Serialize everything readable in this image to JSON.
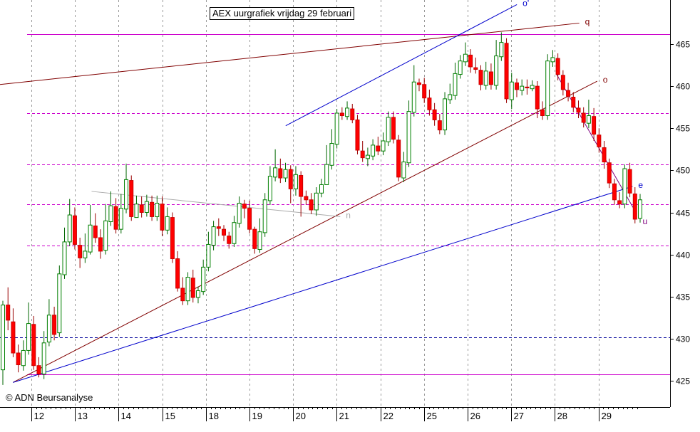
{
  "chart_data": {
    "type": "candlestick",
    "title": "AEX uurgrafiek vrijdag 29 februari",
    "credit": "© ADN Beursanalyse",
    "x_tick_labels": [
      "12",
      "13",
      "14",
      "15",
      "18",
      "19",
      "20",
      "21",
      "22",
      "25",
      "26",
      "27",
      "28",
      "29"
    ],
    "y_tick_labels": [
      425,
      430,
      435,
      440,
      445,
      450,
      455,
      460,
      465
    ],
    "ylim": [
      422,
      471
    ],
    "grid": true,
    "horizontal_levels": [
      {
        "value": 466.2,
        "style": "solid",
        "color": "#cc00cc"
      },
      {
        "value": 456.8,
        "style": "dashed",
        "color": "#cc00cc"
      },
      {
        "value": 450.7,
        "style": "dashed",
        "color": "#cc00cc"
      },
      {
        "value": 446.0,
        "style": "dashed",
        "color": "#cc00cc"
      },
      {
        "value": 441.1,
        "style": "dashed",
        "color": "#cc00cc"
      },
      {
        "value": 430.2,
        "style": "dashed",
        "color": "#000099"
      },
      {
        "value": 425.8,
        "style": "solid",
        "color": "#cc00cc"
      }
    ],
    "trendlines": [
      {
        "label": "q",
        "color": "#800000",
        "from": [
          0.0,
          460.2
        ],
        "to": [
          13.28,
          467.5
        ]
      },
      {
        "label": "o",
        "color": "#800000",
        "from": [
          0.3,
          424.8
        ],
        "to": [
          13.69,
          460.6
        ]
      },
      {
        "label": "o'",
        "color": "#0000cc",
        "from": [
          6.55,
          455.3
        ],
        "to": [
          11.85,
          469.7
        ]
      },
      {
        "label": "e",
        "color": "#0000cc",
        "from": [
          0.3,
          424.8
        ],
        "to": [
          14.5,
          448.1
        ]
      },
      {
        "label": "u",
        "color": "#800080",
        "from": [
          12.75,
          461.5
        ],
        "to": [
          14.6,
          444.8
        ]
      },
      {
        "label": "n",
        "color": "#aaaaaa",
        "from": [
          2.1,
          447.5
        ],
        "to": [
          7.8,
          444.5
        ]
      }
    ],
    "candles": [
      [
        426.3,
        434.0,
        434.5,
        424.5
      ],
      [
        434.0,
        432.2,
        436.1,
        431.0
      ],
      [
        432.0,
        428.3,
        433.6,
        427.8
      ],
      [
        428.3,
        426.9,
        429.3,
        426.0
      ],
      [
        426.8,
        428.6,
        429.8,
        426.2
      ],
      [
        428.6,
        431.8,
        434.3,
        428.1
      ],
      [
        431.7,
        426.8,
        432.7,
        426.3
      ],
      [
        426.8,
        425.8,
        427.8,
        425.4
      ],
      [
        425.8,
        429.5,
        430.9,
        425.2
      ],
      [
        429.6,
        432.8,
        434.7,
        429.1
      ],
      [
        432.8,
        430.5,
        433.8,
        429.8
      ],
      [
        430.7,
        437.7,
        438.7,
        430.2
      ],
      [
        437.6,
        441.5,
        443.2,
        437.1
      ],
      [
        441.5,
        444.7,
        446.6,
        441.0
      ],
      [
        444.6,
        441.2,
        445.6,
        440.6
      ],
      [
        441.1,
        439.6,
        442.0,
        438.4
      ],
      [
        439.6,
        440.4,
        442.5,
        439.0
      ],
      [
        440.3,
        443.5,
        445.9,
        440.0
      ],
      [
        443.4,
        442.0,
        444.9,
        441.4
      ],
      [
        442.0,
        440.4,
        443.0,
        439.5
      ],
      [
        440.5,
        444.0,
        446.0,
        440.0
      ],
      [
        443.9,
        445.8,
        447.5,
        443.4
      ],
      [
        445.7,
        443.0,
        446.7,
        442.5
      ],
      [
        443.0,
        445.5,
        447.2,
        442.5
      ],
      [
        445.4,
        448.9,
        450.8,
        444.9
      ],
      [
        448.8,
        444.5,
        449.4,
        444.0
      ],
      [
        444.4,
        446.0,
        447.0,
        445.4
      ],
      [
        445.9,
        445.0,
        446.9,
        444.4
      ],
      [
        445.0,
        446.3,
        447.1,
        444.5
      ],
      [
        446.2,
        444.5,
        447.0,
        444.0
      ],
      [
        444.5,
        446.1,
        447.0,
        444.0
      ],
      [
        446.0,
        442.9,
        446.9,
        442.2
      ],
      [
        442.9,
        444.5,
        445.6,
        442.4
      ],
      [
        444.4,
        439.5,
        445.0,
        439.0
      ],
      [
        439.5,
        436.0,
        440.4,
        435.6
      ],
      [
        436.0,
        434.5,
        437.3,
        434.0
      ],
      [
        434.5,
        437.3,
        437.9,
        434.0
      ],
      [
        437.2,
        434.9,
        438.2,
        434.3
      ],
      [
        434.9,
        435.7,
        436.2,
        434.2
      ],
      [
        435.6,
        438.5,
        439.4,
        435.2
      ],
      [
        438.5,
        441.2,
        442.7,
        438.0
      ],
      [
        441.1,
        443.3,
        444.0,
        440.5
      ],
      [
        443.3,
        443.1,
        444.3,
        442.2
      ],
      [
        443.0,
        442.3,
        443.5,
        441.6
      ],
      [
        442.2,
        441.3,
        442.7,
        440.7
      ],
      [
        441.3,
        443.8,
        444.6,
        440.9
      ],
      [
        443.7,
        446.1,
        446.9,
        443.2
      ],
      [
        446.0,
        445.5,
        446.5,
        444.3
      ],
      [
        445.5,
        443.0,
        446.4,
        442.5
      ],
      [
        443.0,
        440.7,
        443.3,
        440.1
      ],
      [
        440.6,
        442.7,
        444.3,
        440.2
      ],
      [
        442.6,
        446.5,
        447.3,
        442.1
      ],
      [
        446.4,
        449.3,
        450.5,
        445.9
      ],
      [
        449.2,
        450.3,
        452.5,
        448.7
      ],
      [
        450.2,
        449.1,
        451.4,
        448.5
      ],
      [
        449.1,
        450.1,
        450.9,
        448.6
      ],
      [
        450.1,
        447.8,
        450.6,
        446.1
      ],
      [
        447.8,
        449.5,
        450.5,
        447.0
      ],
      [
        449.4,
        446.9,
        449.9,
        444.5
      ],
      [
        446.9,
        446.5,
        447.6,
        445.9
      ],
      [
        446.5,
        445.3,
        447.3,
        444.8
      ],
      [
        445.3,
        447.3,
        448.0,
        444.6
      ],
      [
        447.3,
        448.3,
        449.0,
        446.8
      ],
      [
        448.3,
        450.7,
        453.0,
        449.2
      ],
      [
        450.6,
        453.2,
        454.9,
        450.1
      ],
      [
        453.1,
        456.8,
        457.3,
        452.6
      ],
      [
        456.8,
        456.5,
        457.5,
        456.0
      ],
      [
        456.4,
        457.4,
        458.2,
        456.0
      ],
      [
        457.3,
        456.0,
        457.9,
        455.6
      ],
      [
        456.0,
        452.4,
        456.6,
        451.9
      ],
      [
        452.3,
        451.5,
        453.5,
        451.0
      ],
      [
        451.4,
        451.8,
        452.7,
        450.5
      ],
      [
        451.7,
        453.0,
        453.7,
        451.2
      ],
      [
        452.9,
        452.3,
        454.0,
        451.8
      ],
      [
        452.3,
        453.5,
        454.5,
        451.8
      ],
      [
        453.4,
        456.3,
        457.0,
        452.9
      ],
      [
        456.3,
        453.7,
        457.0,
        453.2
      ],
      [
        453.6,
        449.2,
        454.2,
        448.7
      ],
      [
        449.1,
        451.0,
        452.2,
        448.6
      ],
      [
        450.9,
        457.0,
        458.3,
        450.4
      ],
      [
        456.9,
        460.5,
        462.5,
        456.4
      ],
      [
        460.4,
        460.2,
        460.9,
        459.4
      ],
      [
        460.2,
        458.6,
        461.0,
        458.0
      ],
      [
        458.6,
        457.2,
        459.6,
        456.5
      ],
      [
        457.2,
        456.0,
        458.0,
        455.3
      ],
      [
        455.9,
        454.8,
        456.7,
        454.3
      ],
      [
        454.8,
        458.5,
        459.3,
        454.2
      ],
      [
        458.4,
        459.0,
        460.3,
        457.9
      ],
      [
        458.9,
        461.5,
        462.8,
        458.4
      ],
      [
        461.4,
        463.0,
        463.7,
        460.9
      ],
      [
        462.9,
        463.8,
        465.2,
        462.4
      ],
      [
        463.7,
        462.3,
        464.4,
        461.6
      ],
      [
        462.2,
        462.0,
        463.4,
        461.5
      ],
      [
        461.9,
        460.2,
        462.5,
        459.5
      ],
      [
        460.1,
        461.8,
        462.9,
        459.6
      ],
      [
        461.7,
        460.2,
        462.7,
        459.6
      ],
      [
        460.1,
        463.6,
        465.5,
        459.6
      ],
      [
        463.5,
        465.2,
        466.4,
        463.0
      ],
      [
        465.1,
        458.5,
        465.7,
        458.0
      ],
      [
        458.4,
        460.5,
        461.6,
        457.3
      ],
      [
        460.4,
        459.6,
        460.9,
        458.7
      ],
      [
        459.5,
        460.0,
        460.8,
        458.9
      ],
      [
        459.9,
        459.8,
        460.8,
        459.0
      ],
      [
        459.7,
        460.1,
        460.7,
        459.4
      ],
      [
        460.0,
        457.3,
        460.6,
        456.2
      ],
      [
        457.2,
        456.5,
        458.2,
        456.0
      ],
      [
        456.5,
        463.0,
        463.8,
        456.0
      ],
      [
        462.9,
        463.4,
        464.3,
        462.3
      ],
      [
        463.3,
        461.4,
        463.9,
        460.7
      ],
      [
        461.3,
        459.6,
        461.9,
        458.9
      ],
      [
        459.5,
        458.8,
        460.4,
        458.2
      ],
      [
        458.7,
        457.5,
        459.3,
        456.9
      ],
      [
        457.4,
        456.9,
        458.3,
        456.2
      ],
      [
        456.8,
        455.7,
        457.5,
        455.1
      ],
      [
        455.6,
        456.5,
        458.4,
        455.0
      ],
      [
        456.4,
        454.3,
        457.4,
        453.5
      ],
      [
        454.2,
        452.8,
        455.0,
        452.1
      ],
      [
        452.7,
        451.0,
        453.5,
        450.2
      ],
      [
        450.9,
        448.5,
        451.4,
        447.9
      ],
      [
        448.4,
        446.5,
        449.0,
        445.9
      ],
      [
        446.4,
        446.0,
        447.4,
        445.5
      ],
      [
        446.0,
        450.2,
        450.7,
        445.5
      ],
      [
        450.1,
        447.3,
        450.9,
        446.8
      ],
      [
        447.2,
        444.2,
        448.0,
        443.7
      ],
      [
        444.3,
        446.5,
        447.2,
        443.8
      ]
    ]
  }
}
